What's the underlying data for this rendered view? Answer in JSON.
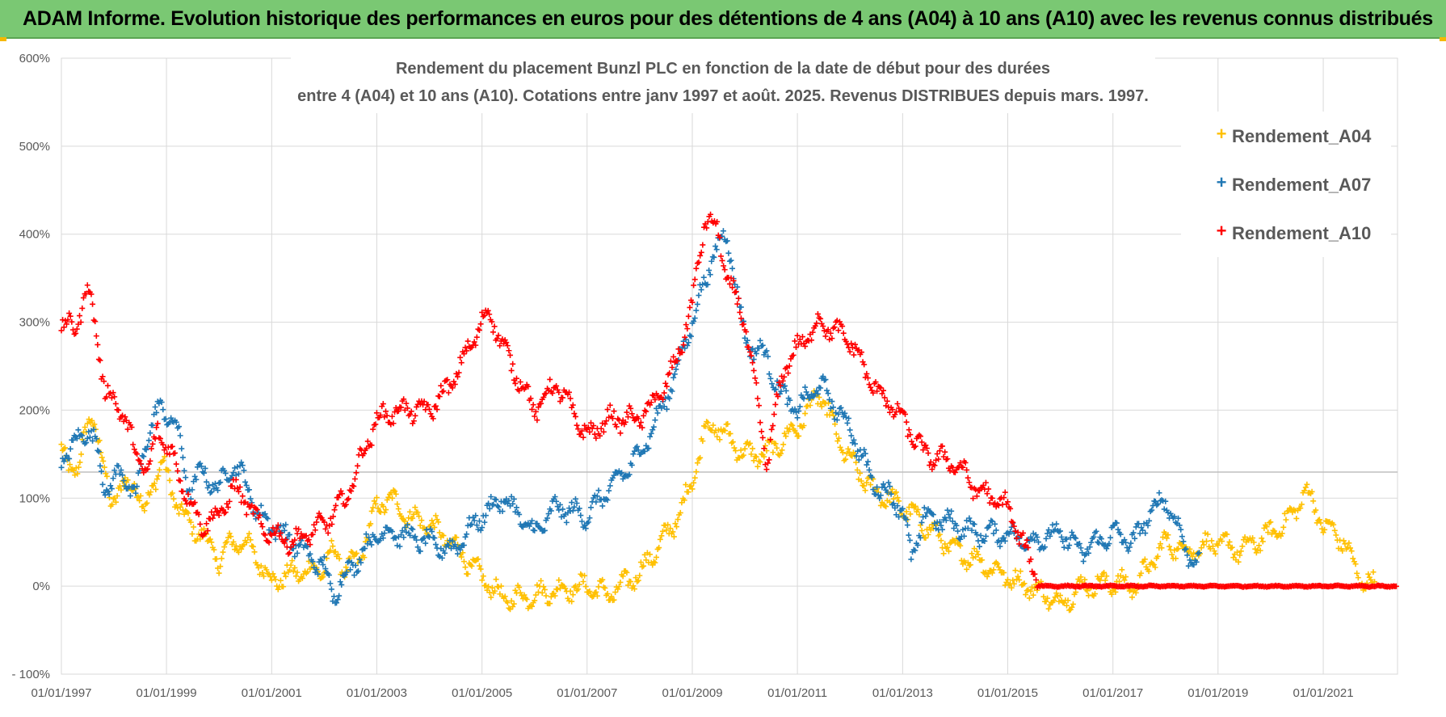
{
  "banner": {
    "text": "ADAM Informe. Evolution historique des performances en euros pour des détentions de 4 ans (A04) à 10 ans (A10) avec les revenus connus distribués"
  },
  "colors": {
    "banner_bg": "#7ac873",
    "A04": "#ffc000",
    "A07": "#1f77b4",
    "A10": "#ff0000",
    "grid": "#d9d9d9",
    "text": "#595959"
  },
  "chart_data": {
    "type": "scatter",
    "title_lines": [
      "Rendement du placement Bunzl PLC en fonction de la date de début pour des durées",
      "entre 4 (A04) et 10 ans (A10).  Cotations entre janv 1997 et août. 2025. Revenus DISTRIBUES depuis mars. 1997."
    ],
    "x_ticks": [
      "01/01/1997",
      "01/01/1999",
      "01/01/2001",
      "01/01/2003",
      "01/01/2005",
      "01/01/2007",
      "01/01/2009",
      "01/01/2011",
      "01/01/2013",
      "01/01/2015",
      "01/01/2017",
      "01/01/2019",
      "01/01/2021"
    ],
    "y_ticks": [
      "- 100%",
      "0%",
      "100%",
      "200%",
      "300%",
      "400%",
      "500%",
      "600%"
    ],
    "x_range": [
      "1997-01-01",
      "2022-06-01"
    ],
    "y_range": [
      -100,
      600
    ],
    "grid": true,
    "legend_position": "top-right",
    "marker": "+",
    "series": [
      {
        "name": "Rendement_A04",
        "color": "#ffc000",
        "points": [
          [
            "1997-01-01",
            150
          ],
          [
            "1997-03-01",
            140
          ],
          [
            "1997-05-01",
            130
          ],
          [
            "1997-07-01",
            185
          ],
          [
            "1997-08-01",
            200
          ],
          [
            "1997-10-01",
            150
          ],
          [
            "1997-12-01",
            100
          ],
          [
            "1998-03-01",
            110
          ],
          [
            "1998-06-01",
            120
          ],
          [
            "1998-08-01",
            80
          ],
          [
            "1998-10-01",
            120
          ],
          [
            "1998-12-01",
            140
          ],
          [
            "1999-03-01",
            100
          ],
          [
            "1999-06-01",
            70
          ],
          [
            "1999-09-01",
            60
          ],
          [
            "2000-01-01",
            30
          ],
          [
            "2000-04-01",
            50
          ],
          [
            "2000-07-01",
            50
          ],
          [
            "2000-10-01",
            30
          ],
          [
            "2001-01-01",
            5
          ],
          [
            "2001-06-01",
            15
          ],
          [
            "2002-01-01",
            20
          ],
          [
            "2002-03-01",
            40
          ],
          [
            "2002-06-01",
            20
          ],
          [
            "2002-09-01",
            30
          ],
          [
            "2003-01-01",
            90
          ],
          [
            "2003-04-01",
            100
          ],
          [
            "2003-08-01",
            80
          ],
          [
            "2004-01-01",
            70
          ],
          [
            "2004-06-01",
            50
          ],
          [
            "2005-01-01",
            10
          ],
          [
            "2005-06-01",
            -15
          ],
          [
            "2006-01-01",
            -10
          ],
          [
            "2006-06-01",
            -5
          ],
          [
            "2007-01-01",
            0
          ],
          [
            "2007-06-01",
            -10
          ],
          [
            "2008-01-01",
            15
          ],
          [
            "2008-06-01",
            50
          ],
          [
            "2008-10-01",
            80
          ],
          [
            "2009-01-01",
            120
          ],
          [
            "2009-04-01",
            180
          ],
          [
            "2009-07-01",
            180
          ],
          [
            "2010-01-01",
            150
          ],
          [
            "2010-06-01",
            150
          ],
          [
            "2011-01-01",
            180
          ],
          [
            "2011-06-01",
            220
          ],
          [
            "2011-12-01",
            150
          ],
          [
            "2012-06-01",
            110
          ],
          [
            "2013-01-01",
            90
          ],
          [
            "2013-06-01",
            70
          ],
          [
            "2014-01-01",
            40
          ],
          [
            "2014-06-01",
            30
          ],
          [
            "2015-01-01",
            10
          ],
          [
            "2015-06-01",
            0
          ],
          [
            "2016-01-01",
            -20
          ],
          [
            "2016-06-01",
            0
          ],
          [
            "2017-01-01",
            5
          ],
          [
            "2017-06-01",
            0
          ],
          [
            "2018-01-01",
            50
          ],
          [
            "2018-06-01",
            40
          ],
          [
            "2019-01-01",
            50
          ],
          [
            "2019-06-01",
            40
          ],
          [
            "2020-01-01",
            60
          ],
          [
            "2020-06-01",
            80
          ],
          [
            "2020-09-01",
            110
          ],
          [
            "2021-01-01",
            70
          ],
          [
            "2021-06-01",
            50
          ],
          [
            "2021-09-01",
            10
          ],
          [
            "2022-01-01",
            0
          ]
        ]
      },
      {
        "name": "Rendement_A07",
        "color": "#1f77b4",
        "points": [
          [
            "1997-01-01",
            145
          ],
          [
            "1997-04-01",
            160
          ],
          [
            "1997-07-01",
            180
          ],
          [
            "1997-09-01",
            160
          ],
          [
            "1997-11-01",
            110
          ],
          [
            "1998-03-01",
            130
          ],
          [
            "1998-06-01",
            100
          ],
          [
            "1998-09-01",
            180
          ],
          [
            "1998-11-01",
            200
          ],
          [
            "1999-03-01",
            190
          ],
          [
            "1999-06-01",
            110
          ],
          [
            "1999-09-01",
            130
          ],
          [
            "2000-01-01",
            110
          ],
          [
            "2000-04-01",
            140
          ],
          [
            "2000-07-01",
            120
          ],
          [
            "2000-10-01",
            80
          ],
          [
            "2001-01-01",
            70
          ],
          [
            "2001-06-01",
            50
          ],
          [
            "2002-01-01",
            20
          ],
          [
            "2002-03-01",
            -10
          ],
          [
            "2002-07-01",
            20
          ],
          [
            "2003-01-01",
            60
          ],
          [
            "2003-06-01",
            60
          ],
          [
            "2004-01-01",
            50
          ],
          [
            "2004-06-01",
            40
          ],
          [
            "2005-01-01",
            80
          ],
          [
            "2005-06-01",
            100
          ],
          [
            "2006-01-01",
            60
          ],
          [
            "2006-06-01",
            90
          ],
          [
            "2007-01-01",
            80
          ],
          [
            "2007-06-01",
            110
          ],
          [
            "2008-01-01",
            150
          ],
          [
            "2008-06-01",
            200
          ],
          [
            "2008-09-01",
            240
          ],
          [
            "2009-01-01",
            300
          ],
          [
            "2009-06-01",
            380
          ],
          [
            "2009-09-01",
            400
          ],
          [
            "2010-01-01",
            280
          ],
          [
            "2010-06-01",
            260
          ],
          [
            "2010-09-01",
            220
          ],
          [
            "2011-01-01",
            200
          ],
          [
            "2011-06-01",
            230
          ],
          [
            "2012-01-01",
            180
          ],
          [
            "2012-06-01",
            120
          ],
          [
            "2013-01-01",
            90
          ],
          [
            "2013-03-01",
            30
          ],
          [
            "2013-06-01",
            80
          ],
          [
            "2014-01-01",
            70
          ],
          [
            "2014-06-01",
            60
          ],
          [
            "2015-01-01",
            60
          ],
          [
            "2015-06-01",
            50
          ],
          [
            "2016-01-01",
            60
          ],
          [
            "2016-06-01",
            40
          ],
          [
            "2017-01-01",
            60
          ],
          [
            "2017-06-01",
            50
          ],
          [
            "2017-09-01",
            80
          ],
          [
            "2018-01-01",
            100
          ],
          [
            "2018-06-01",
            40
          ],
          [
            "2018-09-01",
            20
          ]
        ]
      },
      {
        "name": "Rendement_A10",
        "color": "#ff0000",
        "points": [
          [
            "1997-01-01",
            300
          ],
          [
            "1997-04-01",
            290
          ],
          [
            "1997-07-01",
            340
          ],
          [
            "1997-09-01",
            290
          ],
          [
            "1997-11-01",
            220
          ],
          [
            "1998-03-01",
            200
          ],
          [
            "1998-06-01",
            150
          ],
          [
            "1998-09-01",
            130
          ],
          [
            "1998-11-01",
            180
          ],
          [
            "1999-03-01",
            140
          ],
          [
            "1999-06-01",
            100
          ],
          [
            "1999-09-01",
            70
          ],
          [
            "2000-01-01",
            80
          ],
          [
            "2000-04-01",
            110
          ],
          [
            "2000-07-01",
            100
          ],
          [
            "2000-10-01",
            70
          ],
          [
            "2001-01-01",
            60
          ],
          [
            "2001-06-01",
            50
          ],
          [
            "2002-01-01",
            70
          ],
          [
            "2002-06-01",
            100
          ],
          [
            "2003-01-01",
            190
          ],
          [
            "2003-06-01",
            200
          ],
          [
            "2004-01-01",
            200
          ],
          [
            "2004-06-01",
            230
          ],
          [
            "2005-01-01",
            300
          ],
          [
            "2005-03-01",
            310
          ],
          [
            "2005-06-01",
            270
          ],
          [
            "2006-01-01",
            200
          ],
          [
            "2006-06-01",
            230
          ],
          [
            "2007-01-01",
            170
          ],
          [
            "2007-06-01",
            190
          ],
          [
            "2008-01-01",
            190
          ],
          [
            "2008-06-01",
            220
          ],
          [
            "2008-09-01",
            250
          ],
          [
            "2009-01-01",
            320
          ],
          [
            "2009-04-01",
            420
          ],
          [
            "2009-07-01",
            400
          ],
          [
            "2009-09-01",
            350
          ],
          [
            "2010-01-01",
            300
          ],
          [
            "2010-06-01",
            140
          ],
          [
            "2010-10-01",
            250
          ],
          [
            "2011-01-01",
            270
          ],
          [
            "2011-06-01",
            300
          ],
          [
            "2012-01-01",
            280
          ],
          [
            "2012-06-01",
            230
          ],
          [
            "2013-01-01",
            190
          ],
          [
            "2013-06-01",
            150
          ],
          [
            "2014-01-01",
            140
          ],
          [
            "2014-06-01",
            110
          ],
          [
            "2015-01-01",
            90
          ],
          [
            "2015-06-01",
            30
          ],
          [
            "2015-09-01",
            0
          ],
          [
            "2016-06-01",
            0
          ],
          [
            "2017-06-01",
            0
          ],
          [
            "2018-06-01",
            0
          ],
          [
            "2019-06-01",
            0
          ],
          [
            "2020-06-01",
            0
          ],
          [
            "2021-06-01",
            0
          ],
          [
            "2022-06-01",
            0
          ]
        ]
      }
    ]
  }
}
